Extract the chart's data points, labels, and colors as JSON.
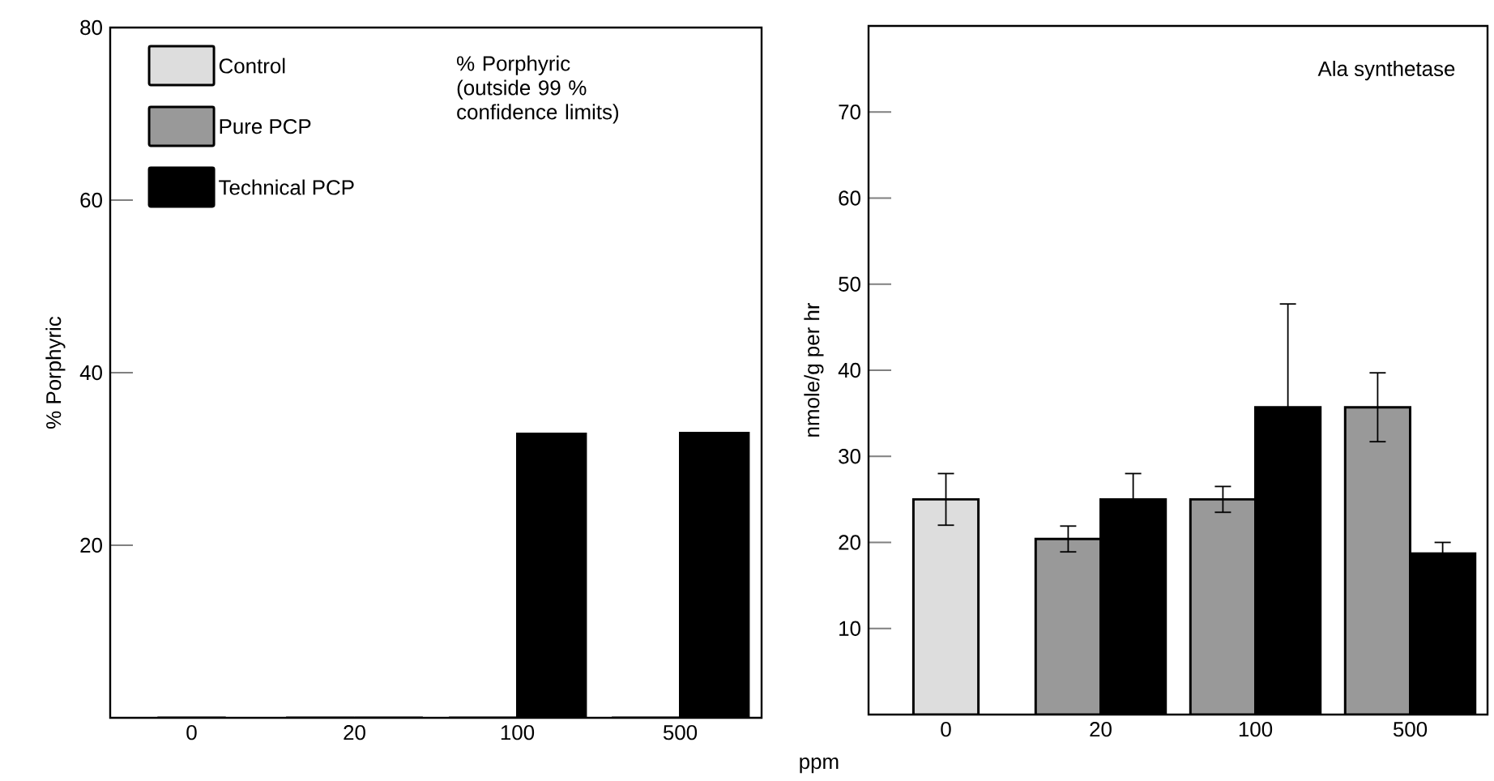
{
  "chart_data": [
    {
      "type": "bar",
      "categories": [
        "0",
        "20",
        "100",
        "500"
      ],
      "ylabel": "% Porphyric",
      "ylim": [
        0,
        80
      ],
      "yticks": [
        20,
        40,
        60,
        80
      ],
      "legend": "top left",
      "annotations": [
        "% Porphyric (outside 99 % confidence limits)"
      ],
      "series": [
        {
          "name": "Control",
          "color": "#dddddd",
          "values": [
            0,
            null,
            null,
            null
          ]
        },
        {
          "name": "Pure PCP",
          "color": "#999999",
          "values": [
            null,
            0,
            0,
            0
          ]
        },
        {
          "name": "Technical PCP",
          "color": "#000000",
          "values": [
            null,
            0,
            32.9,
            33
          ]
        }
      ]
    },
    {
      "type": "bar",
      "categories": [
        "0",
        "20",
        "100",
        "500"
      ],
      "xlabel": "ppm",
      "ylabel": "nmole/g per hr",
      "ylim": [
        0,
        80
      ],
      "yticks": [
        10,
        20,
        30,
        40,
        50,
        60,
        70
      ],
      "annotations": [
        "Ala synthetase"
      ],
      "series": [
        {
          "color": "#dddddd",
          "values": [
            25,
            null,
            null,
            null
          ],
          "errors": [
            3,
            null,
            null,
            null
          ]
        },
        {
          "color": "#999999",
          "values": [
            null,
            20.4,
            25,
            35.7
          ],
          "errors": [
            null,
            1.5,
            1.5,
            4
          ]
        },
        {
          "color": "#000000",
          "values": [
            null,
            25,
            35.7,
            18.7
          ],
          "errors": [
            null,
            3,
            12,
            1.3
          ]
        }
      ]
    }
  ]
}
